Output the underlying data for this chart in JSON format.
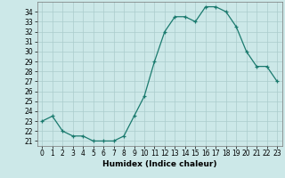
{
  "x": [
    0,
    1,
    2,
    3,
    4,
    5,
    6,
    7,
    8,
    9,
    10,
    11,
    12,
    13,
    14,
    15,
    16,
    17,
    18,
    19,
    20,
    21,
    22,
    23
  ],
  "y": [
    23.0,
    23.5,
    22.0,
    21.5,
    21.5,
    21.0,
    21.0,
    21.0,
    21.5,
    23.5,
    25.5,
    29.0,
    32.0,
    33.5,
    33.5,
    33.0,
    34.5,
    34.5,
    34.0,
    32.5,
    30.0,
    28.5,
    28.5,
    27.0
  ],
  "title": "",
  "xlabel": "Humidex (Indice chaleur)",
  "ylabel": "",
  "ylim": [
    20.5,
    35.0
  ],
  "xlim": [
    -0.5,
    23.5
  ],
  "yticks": [
    21,
    22,
    23,
    24,
    25,
    26,
    27,
    28,
    29,
    30,
    31,
    32,
    33,
    34
  ],
  "xticks": [
    0,
    1,
    2,
    3,
    4,
    5,
    6,
    7,
    8,
    9,
    10,
    11,
    12,
    13,
    14,
    15,
    16,
    17,
    18,
    19,
    20,
    21,
    22,
    23
  ],
  "line_color": "#1a7a6e",
  "marker": "+",
  "bg_color": "#cce8e8",
  "grid_color": "#aacccc",
  "label_fontsize": 6.0,
  "tick_fontsize": 5.5,
  "xlabel_fontsize": 6.5
}
